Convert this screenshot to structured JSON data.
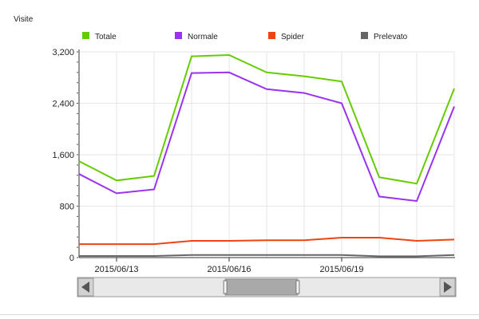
{
  "chart_data": {
    "type": "line",
    "ylabel": "Visite",
    "x": [
      "2015/06/12",
      "2015/06/13",
      "2015/06/14",
      "2015/06/15",
      "2015/06/16",
      "2015/06/17",
      "2015/06/18",
      "2015/06/19",
      "2015/06/20",
      "2015/06/21",
      "2015/06/22"
    ],
    "x_ticks": [
      "2015/06/13",
      "2015/06/16",
      "2015/06/19"
    ],
    "ylim": [
      0,
      3200
    ],
    "y_ticks": [
      "0",
      "800",
      "1,600",
      "2,400",
      "3,200"
    ],
    "grid": true,
    "legend_position": "top",
    "series": [
      {
        "name": "Totale",
        "color": "#66cc00",
        "values": [
          1500,
          1200,
          1270,
          3130,
          3150,
          2880,
          2820,
          2740,
          1250,
          1150,
          2630
        ]
      },
      {
        "name": "Normale",
        "color": "#9933ee",
        "values": [
          1300,
          1000,
          1060,
          2870,
          2880,
          2620,
          2560,
          2400,
          950,
          880,
          2350
        ]
      },
      {
        "name": "Spider",
        "color": "#ee4411",
        "values": [
          210,
          210,
          210,
          260,
          260,
          270,
          270,
          310,
          310,
          260,
          280
        ]
      },
      {
        "name": "Prelevato",
        "color": "#666666",
        "values": [
          25,
          25,
          25,
          40,
          40,
          40,
          40,
          40,
          20,
          20,
          40
        ]
      }
    ]
  },
  "scroller": {
    "range_start": 0.38,
    "range_end": 0.59
  }
}
